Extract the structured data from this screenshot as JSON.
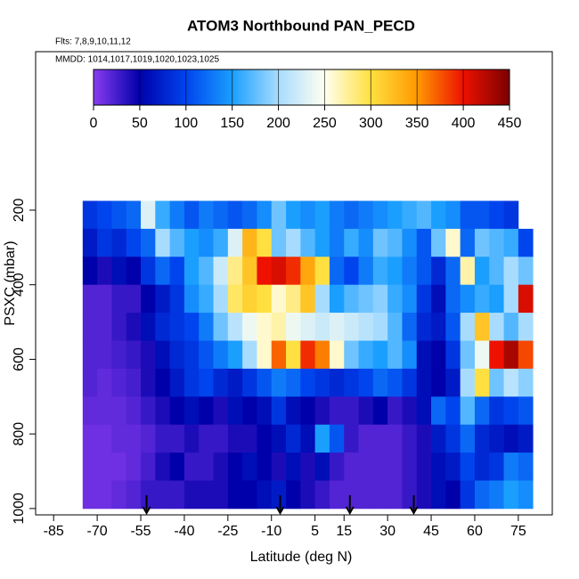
{
  "chart_data": {
    "type": "heatmap",
    "title": "ATOM3 Northbound PAN_PECD",
    "subtitle": "Flts: 7,8,9,10,11,12",
    "annotation": "MMDD: 1014,1017,1019,1020,1023,1025",
    "x_label": "Latitude (deg N)",
    "y_label": "PSXC (mbar)",
    "xlim": [
      -91.2,
      86.7
    ],
    "xticks": [
      -85,
      -70,
      -55,
      -40,
      -25,
      -10,
      5,
      15,
      30,
      45,
      60,
      75
    ],
    "ylim": [
      -225,
      1017
    ],
    "yticks": [
      200,
      400,
      600,
      800,
      1000
    ],
    "x_edges": [
      -75,
      -70,
      -65,
      -60,
      -55,
      -50,
      -45,
      -40,
      -35,
      -30,
      -25,
      -20,
      -15,
      -10,
      -5,
      0,
      5,
      10,
      15,
      20,
      25,
      30,
      35,
      40,
      45,
      50,
      55,
      60,
      65,
      70,
      75,
      80
    ],
    "y_edges": [
      175,
      250,
      325,
      400,
      475,
      550,
      625,
      700,
      775,
      850,
      925,
      1000
    ],
    "values": [
      [
        90,
        100,
        110,
        120,
        230,
        160,
        130,
        110,
        130,
        120,
        110,
        120,
        140,
        180,
        150,
        140,
        150,
        130,
        120,
        130,
        140,
        150,
        160,
        170,
        150,
        140,
        110,
        110,
        100,
        90,
        null
      ],
      [
        70,
        90,
        80,
        100,
        120,
        200,
        170,
        150,
        140,
        160,
        230,
        330,
        300,
        180,
        200,
        170,
        150,
        130,
        160,
        140,
        180,
        170,
        140,
        110,
        180,
        260,
        120,
        180,
        170,
        160,
        100
      ],
      [
        50,
        40,
        60,
        50,
        90,
        120,
        100,
        150,
        170,
        220,
        280,
        320,
        400,
        410,
        390,
        340,
        300,
        120,
        100,
        130,
        160,
        150,
        130,
        110,
        80,
        120,
        270,
        150,
        170,
        200,
        180
      ],
      [
        20,
        20,
        30,
        30,
        50,
        70,
        90,
        140,
        160,
        200,
        290,
        310,
        300,
        260,
        280,
        320,
        200,
        150,
        170,
        180,
        190,
        160,
        140,
        90,
        60,
        120,
        140,
        160,
        150,
        200,
        410
      ],
      [
        20,
        20,
        30,
        40,
        60,
        80,
        90,
        100,
        130,
        180,
        210,
        240,
        260,
        270,
        240,
        230,
        220,
        230,
        220,
        210,
        200,
        170,
        120,
        80,
        70,
        110,
        200,
        320,
        200,
        170,
        200
      ],
      [
        20,
        20,
        25,
        30,
        40,
        60,
        80,
        90,
        110,
        130,
        150,
        200,
        260,
        370,
        300,
        390,
        360,
        260,
        180,
        160,
        150,
        170,
        140,
        60,
        50,
        90,
        180,
        240,
        400,
        430,
        380
      ],
      [
        20,
        15,
        20,
        25,
        40,
        50,
        70,
        90,
        100,
        80,
        70,
        90,
        110,
        130,
        120,
        100,
        90,
        80,
        90,
        100,
        120,
        110,
        90,
        60,
        50,
        70,
        200,
        300,
        180,
        210,
        190
      ],
      [
        15,
        15,
        15,
        20,
        30,
        40,
        50,
        60,
        50,
        40,
        60,
        50,
        60,
        90,
        60,
        50,
        40,
        30,
        30,
        40,
        50,
        30,
        40,
        60,
        120,
        100,
        170,
        120,
        90,
        100,
        110
      ],
      [
        10,
        10,
        15,
        15,
        20,
        30,
        30,
        40,
        30,
        30,
        40,
        40,
        50,
        60,
        80,
        60,
        150,
        110,
        30,
        20,
        20,
        20,
        30,
        40,
        70,
        90,
        120,
        80,
        70,
        60,
        70
      ],
      [
        10,
        10,
        10,
        15,
        25,
        40,
        50,
        30,
        30,
        40,
        50,
        60,
        50,
        40,
        60,
        40,
        60,
        30,
        20,
        20,
        20,
        20,
        30,
        40,
        60,
        70,
        100,
        80,
        90,
        130,
        120
      ],
      [
        10,
        10,
        15,
        20,
        30,
        30,
        30,
        40,
        40,
        40,
        50,
        50,
        60,
        70,
        50,
        40,
        30,
        20,
        20,
        20,
        20,
        20,
        30,
        40,
        60,
        50,
        90,
        120,
        130,
        150,
        140
      ]
    ],
    "colorbar": {
      "lim": [
        0,
        450
      ],
      "ticks": [
        0,
        50,
        100,
        150,
        200,
        250,
        300,
        350,
        400,
        450
      ],
      "colors": [
        "#8a3cf0",
        "#0000aa",
        "#0044ee",
        "#1a9fff",
        "#a8dcff",
        "#fffff0",
        "#ffe040",
        "#ff9900",
        "#ee1100",
        "#7a0000"
      ]
    },
    "markers": [
      -53,
      -7,
      17,
      39
    ]
  }
}
